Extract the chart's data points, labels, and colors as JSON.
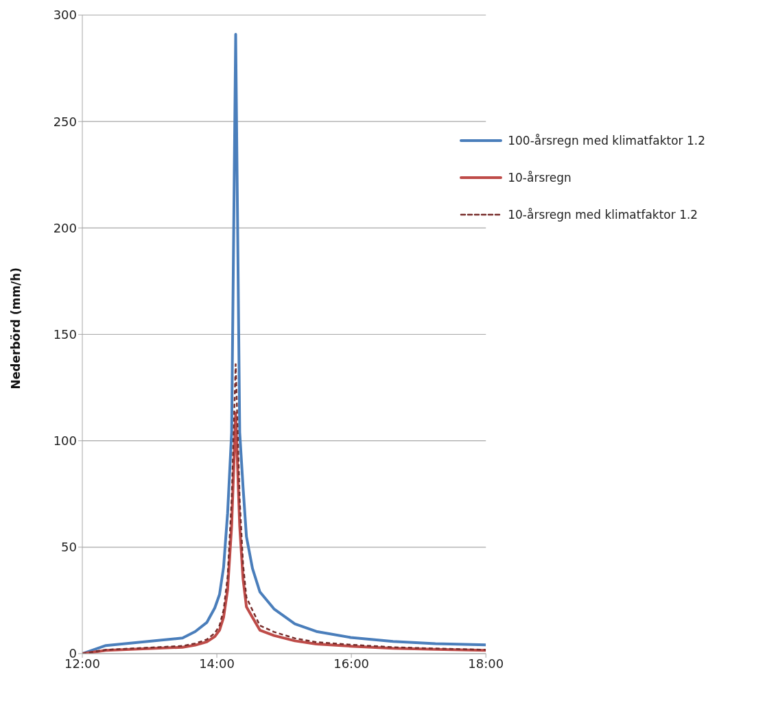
{
  "chart_data": {
    "type": "line",
    "ylabel": "Nederbörd (mm/h)",
    "x": [
      12,
      12.35,
      13.49,
      13.68,
      13.85,
      13.97,
      14.04,
      14.1,
      14.16,
      14.22,
      14.28,
      14.34,
      14.39,
      14.44,
      14.53,
      14.64,
      14.85,
      15.16,
      15.48,
      15.99,
      16.62,
      17.25,
      18
    ],
    "series": [
      {
        "name": "100-årsregn med klimatfaktor 1.2",
        "color": "#4a7ebb",
        "line_style": "solid",
        "values": [
          0,
          3.8,
          7.3,
          10.4,
          14.6,
          21.5,
          27.8,
          40.5,
          66,
          104,
          291,
          104,
          78,
          55,
          40,
          29,
          21,
          14,
          10.4,
          7.6,
          5.7,
          4.7,
          4.1
        ]
      },
      {
        "name": "10-årsregn",
        "color": "#be4b48",
        "line_style": "solid",
        "values": [
          0,
          1.5,
          3,
          4,
          5.5,
          8,
          11,
          17,
          30,
          60,
          113,
          60,
          35,
          22,
          17,
          11,
          8.5,
          6,
          4.5,
          3.5,
          2.5,
          2,
          1.5
        ]
      },
      {
        "name": "10-årsregn med klimatfaktor 1.2",
        "color": "#772c2a",
        "line_style": "dashed",
        "values": [
          0,
          1.8,
          3.6,
          4.8,
          6.6,
          9.6,
          13.2,
          20.4,
          36,
          72,
          136,
          72,
          42,
          26.4,
          20.4,
          13.2,
          10.2,
          7.2,
          5.4,
          4.2,
          3,
          2.4,
          1.8
        ]
      }
    ],
    "xlim": [
      12,
      18
    ],
    "xticks": [
      {
        "value": 12,
        "label": "12:00"
      },
      {
        "value": 14,
        "label": "14:00"
      },
      {
        "value": 16,
        "label": "16:00"
      },
      {
        "value": 18,
        "label": "18:00"
      }
    ],
    "ylim": [
      0,
      300
    ],
    "yticks": [
      0,
      50,
      100,
      150,
      200,
      250,
      300
    ],
    "grid": "y",
    "legend": "top right",
    "marker": "none"
  }
}
